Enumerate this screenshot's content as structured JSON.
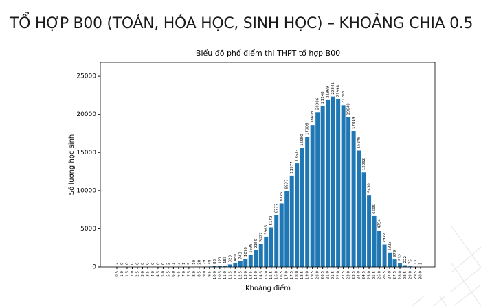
{
  "slide_title": "TỔ HỢP B00 (TOÁN, HÓA HỌC, SINH HỌC) – KHOẢNG CHIA 0.5",
  "chart_data": {
    "type": "bar",
    "title": "Biểu đồ phổ điểm thi THPT tổ hợp B00",
    "x_label": "Khoảng điểm",
    "y_label": "Số lượng học sinh",
    "categories": [
      "0.5",
      "1.0",
      "1.5",
      "2.0",
      "2.5",
      "3.0",
      "3.5",
      "4.0",
      "4.5",
      "5.0",
      "5.5",
      "6.0",
      "6.5",
      "7.0",
      "7.5",
      "8.0",
      "8.5",
      "9.0",
      "9.5",
      "10.0",
      "10.5",
      "11.0",
      "11.5",
      "12.0",
      "12.5",
      "13.0",
      "13.5",
      "14.0",
      "14.5",
      "15.0",
      "15.5",
      "16.0",
      "16.5",
      "17.0",
      "17.5",
      "18.0",
      "18.5",
      "19.0",
      "19.5",
      "20.0",
      "20.5",
      "21.0",
      "21.5",
      "22.0",
      "22.5",
      "23.0",
      "23.5",
      "24.0",
      "24.5",
      "25.0",
      "25.5",
      "26.0",
      "26.5",
      "27.0",
      "27.5",
      "28.0",
      "28.5",
      "29.0",
      "29.5",
      "30.0"
    ],
    "values": [
      2,
      0,
      0,
      0,
      0,
      0,
      0,
      0,
      0,
      0,
      2,
      1,
      3,
      1,
      5,
      10,
      28,
      29,
      48,
      88,
      121,
      183,
      320,
      480,
      743,
      1070,
      1538,
      2159,
      3027,
      3965,
      5172,
      6777,
      8325,
      9937,
      11977,
      13573,
      15580,
      17006,
      18608,
      20306,
      21148,
      21869,
      22341,
      21998,
      21203,
      19640,
      17814,
      15249,
      12392,
      9430,
      6665,
      4754,
      2922,
      1823,
      979,
      532,
      222,
      75,
      13,
      1
    ],
    "color": "#1f77b4",
    "ylim": [
      0,
      26809
    ],
    "yticks": [
      0,
      5000,
      10000,
      15000,
      20000,
      25000
    ]
  }
}
